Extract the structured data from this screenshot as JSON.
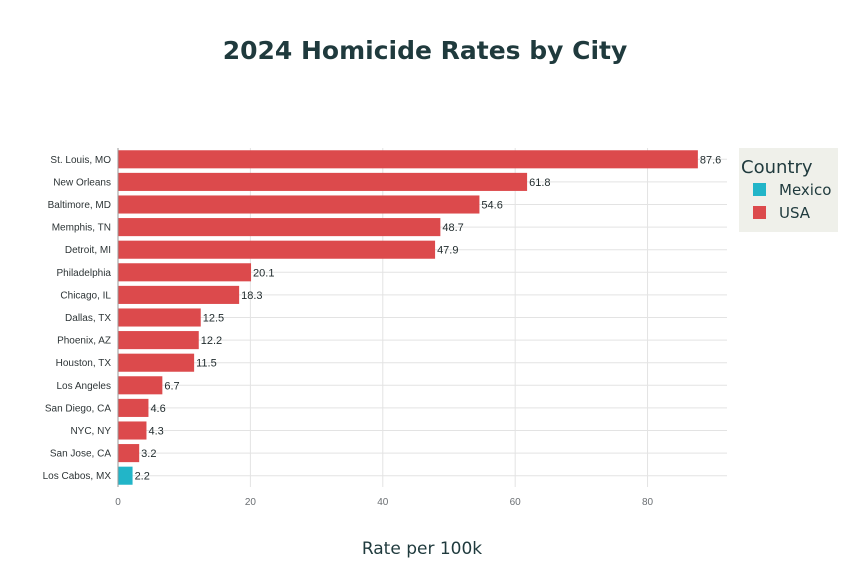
{
  "chart_data": {
    "type": "bar",
    "orientation": "horizontal",
    "title": "2024 Homicide Rates by City",
    "xlabel": "Rate per 100k",
    "ylabel": "",
    "xlim": [
      0,
      92
    ],
    "x_ticks": [
      0,
      20,
      40,
      60,
      80
    ],
    "grid": true,
    "legend": {
      "title": "Country",
      "placement": "right",
      "entries": [
        {
          "name": "Mexico",
          "color": "#22b5c8"
        },
        {
          "name": "USA",
          "color": "#dc4a4c"
        }
      ]
    },
    "categories": [
      "St. Louis, MO",
      "New Orleans",
      "Baltimore, MD",
      "Memphis, TN",
      "Detroit, MI",
      "Philadelphia",
      "Chicago, IL",
      "Dallas, TX",
      "Phoenix, AZ",
      "Houston, TX",
      "Los Angeles",
      "San Diego, CA",
      "NYC, NY",
      "San Jose, CA",
      "Los Cabos, MX"
    ],
    "values": [
      87.6,
      61.8,
      54.6,
      48.7,
      47.9,
      20.1,
      18.3,
      12.5,
      12.2,
      11.5,
      6.7,
      4.6,
      4.3,
      3.2,
      2.2
    ],
    "value_labels": [
      "87.6",
      "61.8",
      "54.6",
      "48.7",
      "47.9",
      "20.1",
      "18.3",
      "12.5",
      "12.2",
      "11.5",
      "6.7",
      "4.6",
      "4.3",
      "3.2",
      "2.2"
    ],
    "country": [
      "USA",
      "USA",
      "USA",
      "USA",
      "USA",
      "USA",
      "USA",
      "USA",
      "USA",
      "USA",
      "USA",
      "USA",
      "USA",
      "USA",
      "Mexico"
    ]
  }
}
